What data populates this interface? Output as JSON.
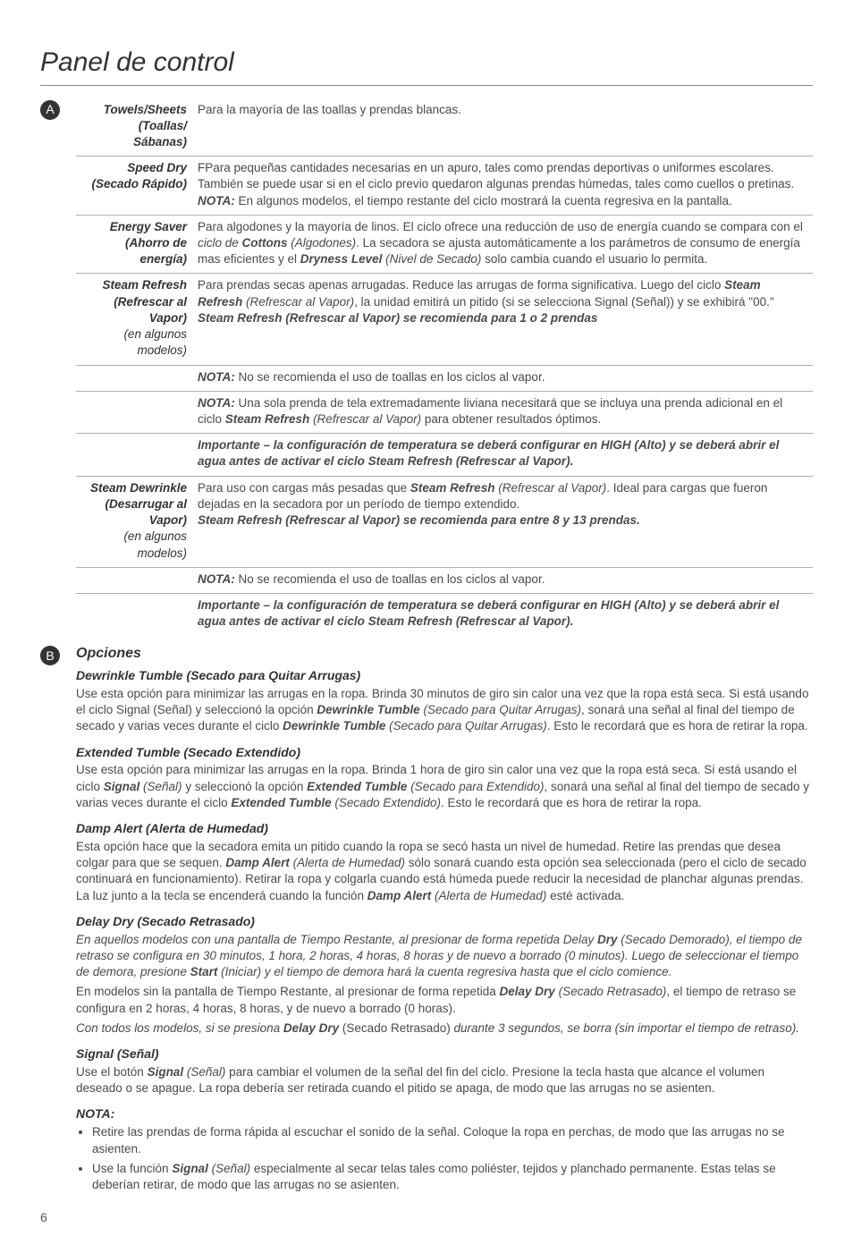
{
  "page_title": "Panel de control",
  "badge_A": "A",
  "badge_B": "B",
  "page_number": "6",
  "rows": {
    "towels": {
      "label1": "Towels/Sheets",
      "label2": "(Toallas/ Sábanas)",
      "desc": "Para la mayoría de las toallas y prendas blancas."
    },
    "speed": {
      "label1": "Speed Dry",
      "label2": "(Secado Rápido)",
      "desc_p1": "FPara pequeñas cantidades necesarias en un apuro, tales como prendas deportivas o uniformes escolares. También se puede usar si en el ciclo previo quedaron algunas prendas húmedas, tales como cuellos o pretinas. ",
      "nota_label": "NOTA:",
      "nota_text": " En algunos modelos, el tiempo restante del ciclo mostrará la cuenta regresiva en la pantalla."
    },
    "energy": {
      "label1": "Energy Saver",
      "label2": "(Ahorro de energía)",
      "desc_p1": "Para algodones y la mayoría de linos. El ciclo ofrece una reducción de uso de energía cuando se compara con el ",
      "ciclo_de": "ciclo de ",
      "cottons": "Cottons",
      "algodones": " (Algodones)",
      "desc_p2": ". La secadora se ajusta automáticamente a los parámetros de consumo de energía mas eficientes y el ",
      "dryness": "Dryness Level",
      "nivel": " (Nivel de Secado)",
      "desc_p3": " solo cambia cuando el usuario lo permita."
    },
    "steam_refresh": {
      "label1": "Steam Refresh",
      "label2": "(Refrescar al Vapor)",
      "label3": "(en algunos modelos)",
      "d1": "Para prendas secas apenas arrugadas. Reduce las arrugas de forma significativa. Luego del ciclo ",
      "sr_bi": "Steam Refresh",
      "sr_i": " (Refrescar al Vapor)",
      "d2": ", la unidad emitirá un pitido (si se selecciona Signal (Señal)) y se exhibirá \"00.\"",
      "rec": "Steam Refresh (Refrescar al Vapor) se recomienda para 1 o 2 prendas",
      "nota1_l": "NOTA:",
      "nota1_t": " No se recomienda el uso de toallas en los ciclos al vapor.",
      "nota2_l": "NOTA:",
      "nota2_t1": " Una sola prenda de tela extremadamente liviana necesitará que se incluya una prenda adicional en el ciclo ",
      "nota2_b": "Steam Refresh",
      "nota2_i": " (Refrescar al Vapor)",
      "nota2_t2": " para obtener resultados óptimos.",
      "imp": "Importante – la configuración de temperatura se deberá configurar en HIGH (Alto) y se deberá abrir el agua antes de activar el ciclo Steam Refresh (Refrescar al Vapor)."
    },
    "steam_dewrinkle": {
      "label1": "Steam Dewrinkle",
      "label2": "(Desarrugar al Vapor)",
      "label3": "(en algunos modelos)",
      "d1": "Para uso con cargas más pesadas que ",
      "sr_bi": "Steam Refresh",
      "sr_i": " (Refrescar al Vapor)",
      "d2": ". Ideal para cargas que fueron dejadas en la secadora por un período de tiempo extendido.",
      "rec": "Steam Refresh (Refrescar al Vapor) se recomienda para entre 8 y 13 prendas.",
      "nota_l": "NOTA:",
      "nota_t": " No se recomienda el uso de toallas en los ciclos al vapor.",
      "imp": "Importante – la configuración de temperatura se deberá configurar en HIGH (Alto) y se deberá abrir el agua antes de activar el ciclo Steam Refresh (Refrescar al Vapor)."
    }
  },
  "opciones": {
    "title": "Opciones",
    "dewrinkle": {
      "h": "Dewrinkle Tumble (Secado para Quitar Arrugas)",
      "p1": "Use esta opción para minimizar las arrugas en la ropa. Brinda 30 minutos de giro sin calor una vez que la ropa está seca. Si está usando el ciclo Signal (Señal) y seleccionó la opción ",
      "b1": "Dewrinkle Tumble",
      "i1": " (Secado para Quitar Arrugas)",
      "p2": ", sonará una señal al final del tiempo de secado y varias veces durante el ciclo ",
      "b2": "Dewrinkle Tumble",
      "i2": " (Secado para Quitar Arrugas)",
      "p3": ". Esto le recordará que es hora de retirar la ropa."
    },
    "extended": {
      "h": "Extended Tumble (Secado Extendido)",
      "p1": "Use esta opción para minimizar las arrugas en la ropa. Brinda 1 hora de giro sin calor una vez que la ropa está seca. Si está usando el ciclo ",
      "b_sig": "Signal",
      "i_sig": " (Señal)",
      "p2": " y seleccionó la opción ",
      "b1": "Extended Tumble",
      "i1": " (Secado para Extendido)",
      "p3": ", sonará una señal al final del tiempo de secado y varias veces durante el ciclo ",
      "b2": "Extended Tumble",
      "i2": " (Secado Extendido)",
      "p4": ". Esto le recordará que es hora de retirar la ropa."
    },
    "damp": {
      "h": "Damp Alert (Alerta de Humedad)",
      "p1": "Esta opción hace que la secadora emita un pitido cuando la ropa se secó hasta un nivel de humedad. Retire las prendas que desea colgar para que se sequen. ",
      "b1": "Damp Alert",
      "i1": " (Alerta de Humedad)",
      "p2": " sólo sonará cuando esta opción sea seleccionada (pero el ciclo de secado continuará en funcionamiento). Retirar la ropa y colgarla cuando está húmeda puede reducir la necesidad de planchar algunas prendas. La luz junto a la tecla se encenderá cuando la función ",
      "b2": "Damp Alert",
      "i2": " (Alerta de Humedad)",
      "p3": " esté activada."
    },
    "delay": {
      "h": "Delay Dry (Secado Retrasado)",
      "p1_i1": "En aquellos modelos con una pantalla de Tiempo Restante, al presionar de forma repetida Delay ",
      "b_dry": "Dry",
      "p1_i2": " (Secado Demorado), el tiempo de retraso se configura en 30 minutos, 1 hora, 2 horas, 4 horas, 8 horas y de nuevo a borrado (0 minutos). Luego de seleccionar el tiempo de demora, presione ",
      "b_start": "Start",
      "p1_i3": " (Iniciar) y el tiempo de demora hará la cuenta regresiva hasta que el ciclo comience.",
      "p2_1": "En modelos sin la pantalla de Tiempo Restante, al presionar de forma repetida ",
      "b_delay": "Delay Dry",
      "i_delay": " (Secado Retrasado)",
      "p2_2": ", el tiempo de retraso se configura en 2 horas, 4 horas, 8 horas, y de nuevo a borrado (0 horas).",
      "p3_i1": "Con todos los modelos, si se presiona ",
      "b_delay2": "Delay Dry",
      "p3_n": " (Secado Retrasado) ",
      "p3_i2": "durante 3 segundos, se borra (sin importar el tiempo de retraso)."
    },
    "signal": {
      "h": "Signal (Señal)",
      "p1": "Use el botón ",
      "b1": "Signal",
      "i1": " (Señal)",
      "p2": " para cambiar el volumen de la señal del fin del ciclo. Presione la tecla hasta que alcance el volumen deseado o se apague. La ropa debería ser retirada cuando el pitido se apaga, de modo que las arrugas no se asienten."
    },
    "nota": {
      "h": "NOTA:",
      "li1": "Retire las prendas de forma rápida al escuchar el sonido de la señal. Coloque la ropa en perchas, de modo que las arrugas no se asienten.",
      "li2_1": "Use la función ",
      "li2_b": "Signal",
      "li2_i": " (Señal)",
      "li2_2": " especialmente al secar telas tales como poliéster, tejidos y planchado permanente. Estas telas se deberían retirar, de modo que las arrugas no se asienten."
    }
  }
}
